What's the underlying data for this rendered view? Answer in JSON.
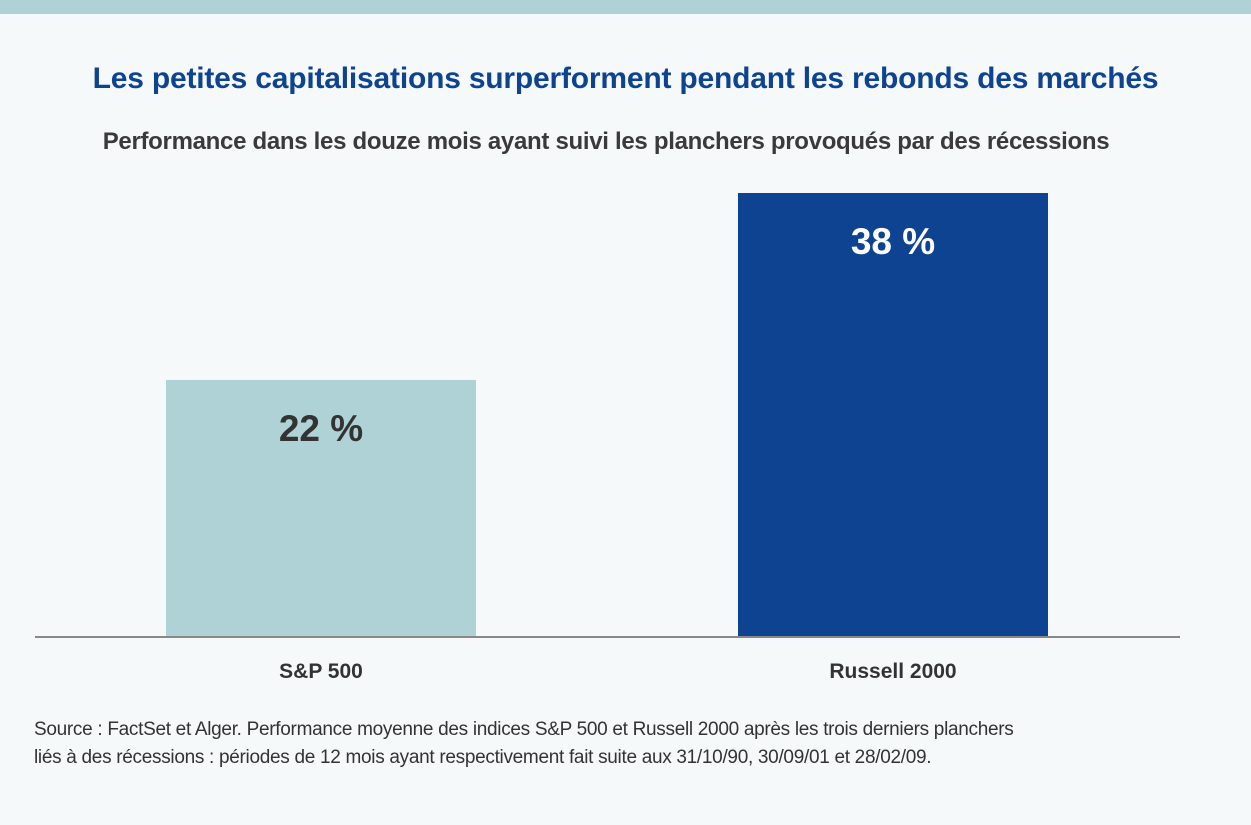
{
  "chart_data": {
    "type": "bar",
    "title": "Les petites capitalisations surperforment pendant les rebonds des marchés",
    "subtitle": "Performance dans les douze mois ayant suivi les planchers provoqués par des récessions",
    "categories": [
      "S&P 500",
      "Russell 2000"
    ],
    "values": [
      22,
      38
    ],
    "value_labels": [
      "22 %",
      "38 %"
    ],
    "colors": [
      "#aed2d5",
      "#0e4391"
    ],
    "label_colors": [
      "#333333",
      "#ffffff"
    ],
    "ylim": [
      0,
      38
    ],
    "grid": false,
    "legend": "none"
  },
  "source": {
    "line1": "Source : FactSet et Alger. Performance moyenne des indices S&P 500 et Russell 2000 après les trois derniers planchers",
    "line2": "liés à des récessions : périodes de 12 mois ayant respectivement fait suite aux 31/10/90, 30/09/01 et 28/02/09."
  },
  "colors": {
    "accent_strip": "#aed2d5",
    "title": "#0e4391",
    "axis": "#888888"
  }
}
